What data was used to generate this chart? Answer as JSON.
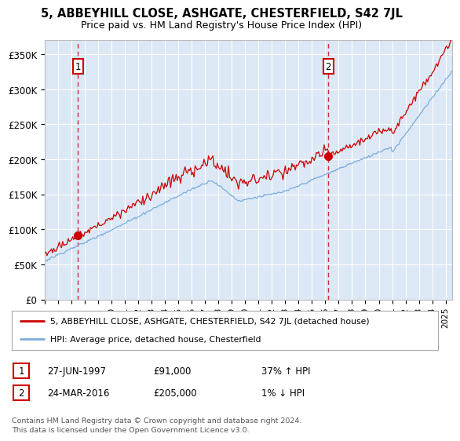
{
  "title1": "5, ABBEYHILL CLOSE, ASHGATE, CHESTERFIELD, S42 7JL",
  "title2": "Price paid vs. HM Land Registry's House Price Index (HPI)",
  "ylabel_ticks": [
    "£0",
    "£50K",
    "£100K",
    "£150K",
    "£200K",
    "£250K",
    "£300K",
    "£350K"
  ],
  "ytick_values": [
    0,
    50000,
    100000,
    150000,
    200000,
    250000,
    300000,
    350000
  ],
  "ylim": [
    0,
    370000
  ],
  "xlim_start": 1995.0,
  "xlim_end": 2025.5,
  "purchase1_date": 1997.49,
  "purchase1_price": 91000,
  "purchase2_date": 2016.23,
  "purchase2_price": 205000,
  "legend_line1": "5, ABBEYHILL CLOSE, ASHGATE, CHESTERFIELD, S42 7JL (detached house)",
  "legend_line2": "HPI: Average price, detached house, Chesterfield",
  "annotation1_date": "27-JUN-1997",
  "annotation1_price": "£91,000",
  "annotation1_pct": "37% ↑ HPI",
  "annotation2_date": "24-MAR-2016",
  "annotation2_price": "£205,000",
  "annotation2_pct": "1% ↓ HPI",
  "footer": "Contains HM Land Registry data © Crown copyright and database right 2024.\nThis data is licensed under the Open Government Licence v3.0.",
  "hpi_color": "#7aaddc",
  "price_color": "#cc0000",
  "plot_bg": "#dce8f5"
}
